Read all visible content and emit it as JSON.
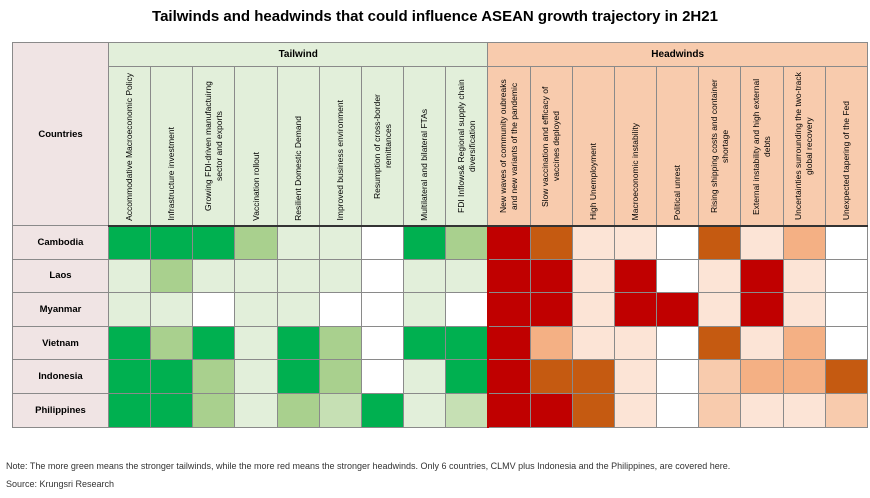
{
  "title": "Tailwinds and headwinds that could influence ASEAN growth trajectory in 2H21",
  "chart_data": {
    "type": "heatmap",
    "title": "Tailwinds and headwinds that could influence ASEAN growth trajectory in 2H21",
    "row_header": "Countries",
    "rows": [
      "Cambodia",
      "Laos",
      "Myanmar",
      "Vietnam",
      "Indonesia",
      "Philippines"
    ],
    "groups": [
      {
        "name": "Tailwind",
        "color_scale": [
          "#ffffff",
          "#e2efda",
          "#c6e0b4",
          "#a9d08e",
          "#00b050"
        ],
        "columns": [
          "Accommodative Macroeconomic Policy",
          "Infrastructure investment",
          "Growing FDI-driven manufactuirng sector and exports",
          "Vaccination rollout",
          "Resilient Domestic Demand",
          "Improved business environment",
          "Resumption of cross-border remittances",
          "Multilateral and bilateral FTAs",
          "FDI Inflows& Regional supply chain diversification"
        ],
        "values": [
          [
            4,
            4,
            4,
            3,
            1,
            1,
            0,
            4,
            3
          ],
          [
            1,
            3,
            1,
            1,
            1,
            1,
            0,
            1,
            1
          ],
          [
            1,
            1,
            0,
            1,
            1,
            0,
            0,
            1,
            0
          ],
          [
            4,
            3,
            4,
            1,
            4,
            3,
            0,
            4,
            4
          ],
          [
            4,
            4,
            3,
            1,
            4,
            3,
            0,
            1,
            4
          ],
          [
            4,
            4,
            3,
            1,
            3,
            2,
            4,
            1,
            2
          ]
        ]
      },
      {
        "name": "Headwinds",
        "color_scale": [
          "#ffffff",
          "#fce4d6",
          "#f8cbad",
          "#f4b084",
          "#c55a11",
          "#c00000"
        ],
        "columns": [
          "New waves of community oubreaks and new variants of the pandemic",
          "Slow vaccination and efficacy of vaccines deployed",
          "High Unemployment",
          "Macroeconomic instability",
          "Political unrest",
          "Rising shipping costs and container shortage",
          "External instability and high external debts",
          "Uncertainties surrounding the two-track global recovery",
          "Unexpected tapering of the Fed"
        ],
        "values": [
          [
            5,
            4,
            1,
            1,
            0,
            4,
            1,
            3,
            0
          ],
          [
            5,
            5,
            1,
            5,
            0,
            1,
            5,
            1,
            0
          ],
          [
            5,
            5,
            1,
            5,
            5,
            1,
            5,
            1,
            0
          ],
          [
            5,
            3,
            1,
            1,
            0,
            4,
            1,
            3,
            0
          ],
          [
            5,
            4,
            4,
            1,
            0,
            2,
            3,
            3,
            4
          ],
          [
            5,
            5,
            4,
            1,
            0,
            2,
            1,
            1,
            2
          ]
        ]
      }
    ],
    "legend_note": "The more green means the stronger tailwinds, while the more red means the stronger headwinds."
  },
  "note": "Note: The more green means the stronger tailwinds, while the more red means the stronger headwinds. Only 6 countries, CLMV plus Indonesia and the Philippines, are covered here.",
  "source": "Source: Krungsri Research"
}
